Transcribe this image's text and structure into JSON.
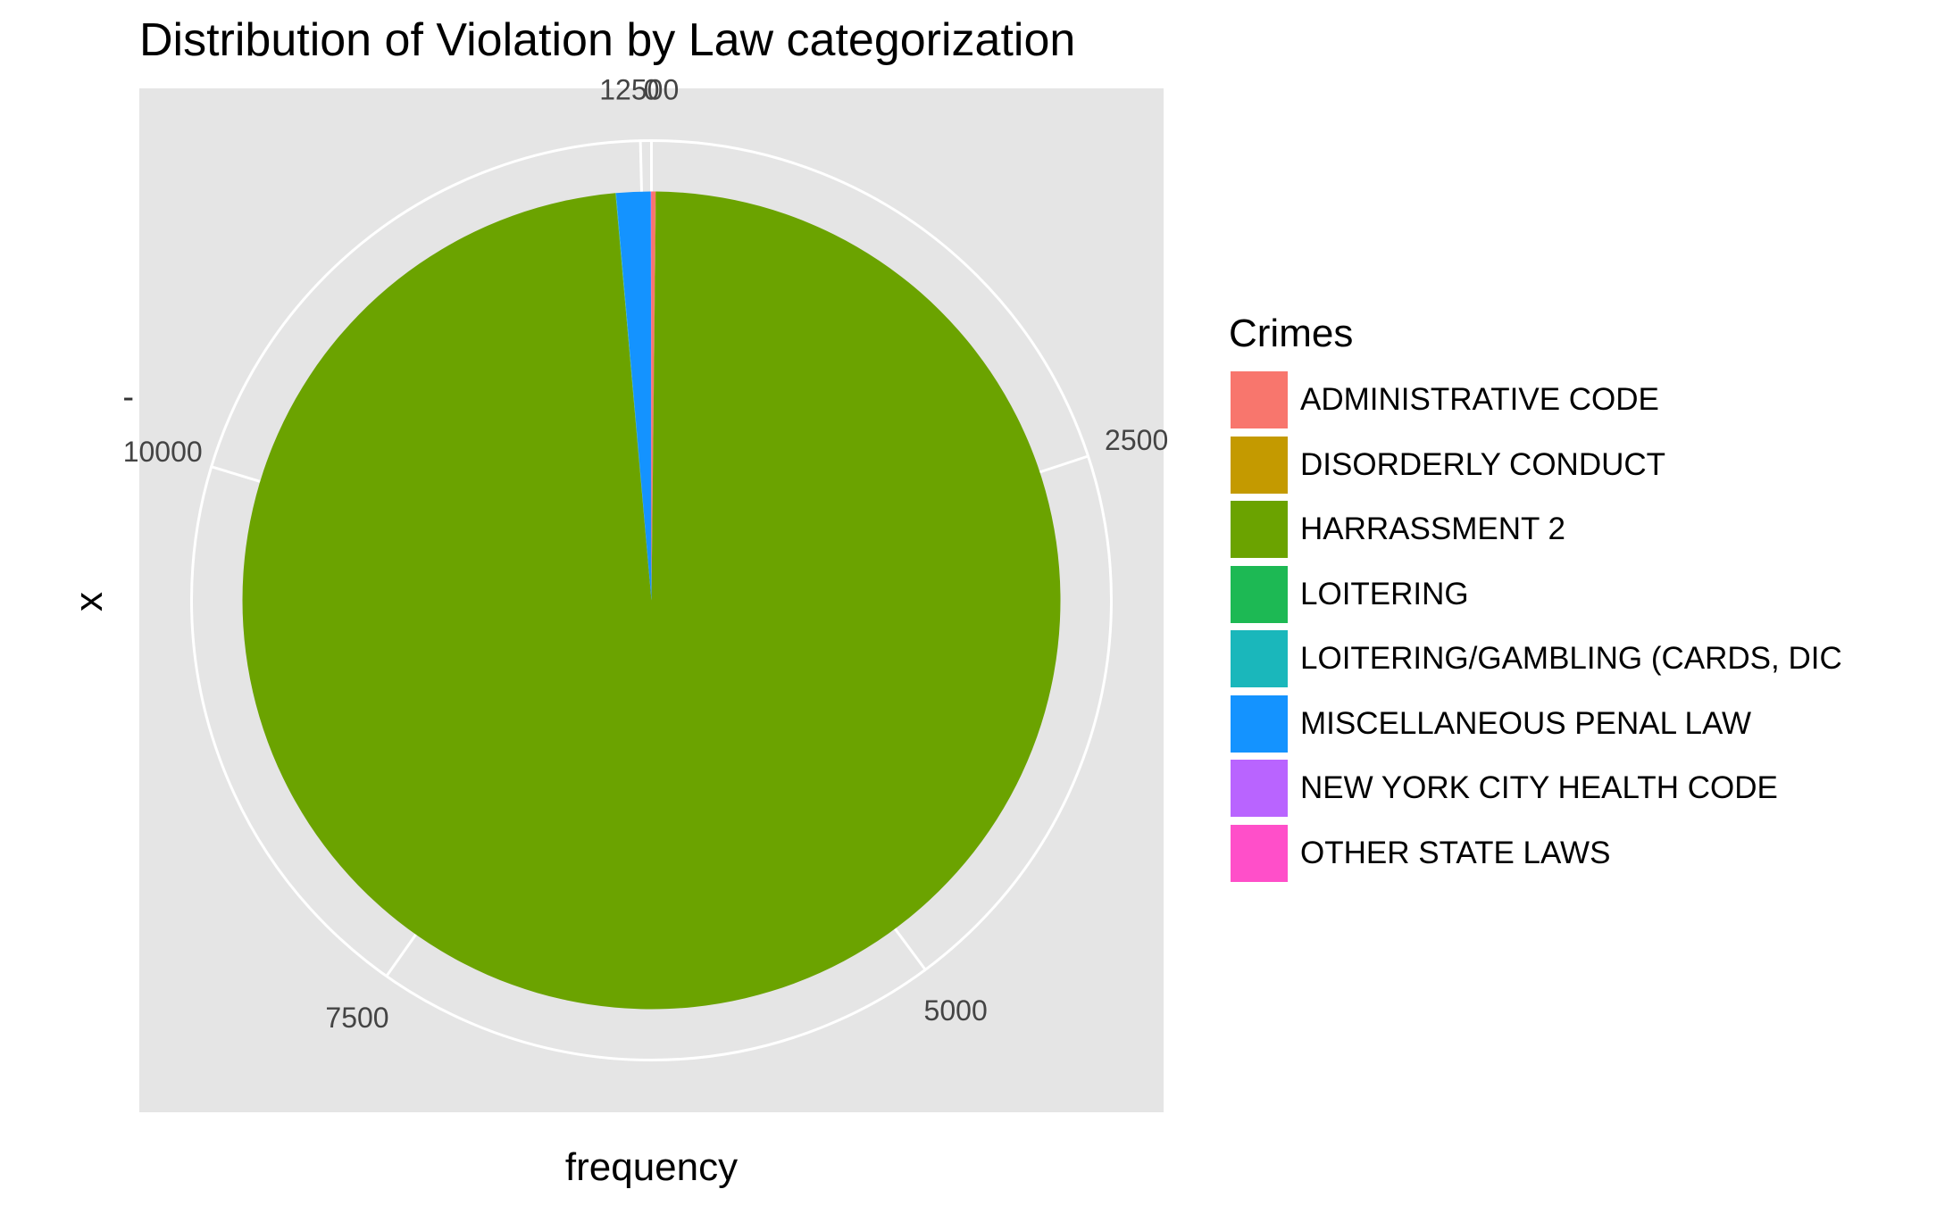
{
  "chart_data": {
    "type": "pie",
    "title": "Distribution of Violation by Law categorization",
    "xlabel": "frequency",
    "ylabel": "x",
    "y_tick_label": "-",
    "legend_title": "Crimes",
    "legend_position": "right",
    "panel_background": "#e5e5e5",
    "grid_color": "#ffffff",
    "radial_ticks": [
      0,
      2500,
      5000,
      7500,
      10000,
      12500
    ],
    "radial_tick_labels": [
      "0",
      "2500",
      "5000",
      "7500",
      "10000",
      "12500"
    ],
    "slices": [
      {
        "label": "ADMINISTRATIVE CODE",
        "value": 20,
        "color": "#F8766D"
      },
      {
        "label": "DISORDERLY CONDUCT",
        "value": 2,
        "color": "#C49A00"
      },
      {
        "label": "HARRASSMENT 2",
        "value": 12350,
        "color": "#6BA300"
      },
      {
        "label": "LOITERING",
        "value": 1,
        "color": "#1DB954"
      },
      {
        "label": "LOITERING/GAMBLING (CARDS, DIC",
        "value": 2,
        "color": "#1AB7BB"
      },
      {
        "label": "MISCELLANEOUS PENAL LAW",
        "value": 170,
        "color": "#1493FF"
      },
      {
        "label": "NEW YORK CITY HEALTH CODE",
        "value": 1,
        "color": "#B964FF"
      },
      {
        "label": "OTHER STATE LAWS",
        "value": 2,
        "color": "#FF4FC9"
      }
    ]
  }
}
